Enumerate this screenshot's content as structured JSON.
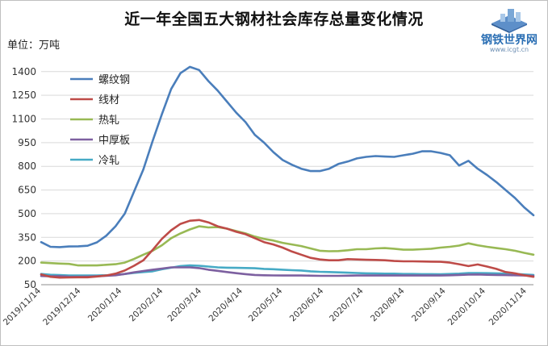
{
  "header": {
    "title": "近一年全国五大钢材社会库存总量变化情况",
    "unit_label": "单位：万吨",
    "logo_name": "钢铁世界网",
    "logo_url": "www.icgt.cn"
  },
  "colors": {
    "螺纹钢": "#4a7ebb",
    "线材": "#be4b48",
    "热轧": "#98b954",
    "中厚板": "#7d60a0",
    "冷轧": "#46aac5"
  },
  "chart_data": {
    "type": "line",
    "title": "近一年全国五大钢材社会库存总量变化情况",
    "ylabel": "单位：万吨",
    "xlabel": "",
    "ylim": [
      50,
      1450
    ],
    "yticks": [
      50,
      200,
      350,
      500,
      650,
      800,
      950,
      1100,
      1250,
      1400
    ],
    "grid": "horizontal",
    "legend": "top-left",
    "x": [
      "2019/11/14",
      "2019/11/21",
      "2019/11/28",
      "2019/12/5",
      "2019/12/12",
      "2019/12/19",
      "2019/12/26",
      "2020/1/2",
      "2020/1/9",
      "2020/1/16",
      "2020/1/23",
      "2020/1/30",
      "2020/2/6",
      "2020/2/13",
      "2020/2/20",
      "2020/2/27",
      "2020/3/5",
      "2020/3/12",
      "2020/3/19",
      "2020/3/26",
      "2020/4/2",
      "2020/4/9",
      "2020/4/16",
      "2020/4/23",
      "2020/4/30",
      "2020/5/7",
      "2020/5/14",
      "2020/5/21",
      "2020/5/28",
      "2020/6/4",
      "2020/6/11",
      "2020/6/18",
      "2020/6/25",
      "2020/7/2",
      "2020/7/9",
      "2020/7/16",
      "2020/7/23",
      "2020/7/30",
      "2020/8/6",
      "2020/8/13",
      "2020/8/20",
      "2020/8/27",
      "2020/9/3",
      "2020/9/10",
      "2020/9/17",
      "2020/9/24",
      "2020/10/1",
      "2020/10/8",
      "2020/10/15",
      "2020/10/22",
      "2020/10/29",
      "2020/11/5",
      "2020/11/12",
      "2020/11/19"
    ],
    "xticks": [
      "2019/11/14",
      "2019/12/14",
      "2020/1/14",
      "2020/2/14",
      "2020/3/14",
      "2020/4/14",
      "2020/5/14",
      "2020/6/14",
      "2020/7/14",
      "2020/8/14",
      "2020/9/14",
      "2020/10/14",
      "2020/11/14"
    ],
    "series": [
      {
        "name": "螺纹钢",
        "values": [
          320,
          290,
          288,
          292,
          293,
          297,
          318,
          360,
          420,
          500,
          640,
          780,
          960,
          1130,
          1290,
          1390,
          1430,
          1410,
          1340,
          1280,
          1210,
          1140,
          1080,
          1000,
          950,
          890,
          840,
          810,
          785,
          770,
          770,
          785,
          815,
          830,
          850,
          860,
          865,
          862,
          860,
          870,
          880,
          895,
          895,
          885,
          870,
          805,
          835,
          785,
          745,
          700,
          650,
          600,
          540,
          490
        ]
      },
      {
        "name": "线材",
        "values": [
          115,
          100,
          95,
          96,
          97,
          97,
          102,
          108,
          120,
          140,
          170,
          205,
          270,
          340,
          395,
          435,
          455,
          460,
          445,
          420,
          405,
          385,
          370,
          345,
          320,
          305,
          285,
          260,
          240,
          220,
          210,
          205,
          205,
          212,
          210,
          208,
          207,
          205,
          200,
          198,
          198,
          197,
          196,
          195,
          190,
          180,
          168,
          178,
          165,
          150,
          130,
          122,
          110,
          100
        ]
      },
      {
        "name": "热轧",
        "values": [
          190,
          187,
          184,
          182,
          172,
          172,
          172,
          176,
          180,
          190,
          213,
          240,
          265,
          300,
          345,
          375,
          400,
          420,
          413,
          415,
          405,
          390,
          375,
          355,
          340,
          330,
          315,
          305,
          295,
          280,
          265,
          262,
          263,
          268,
          275,
          275,
          280,
          282,
          278,
          272,
          272,
          275,
          278,
          285,
          290,
          298,
          312,
          300,
          290,
          282,
          275,
          265,
          252,
          240
        ]
      },
      {
        "name": "中厚板",
        "values": [
          105,
          103,
          104,
          101,
          100,
          101,
          103,
          106,
          110,
          118,
          128,
          137,
          145,
          152,
          160,
          160,
          160,
          155,
          145,
          138,
          130,
          123,
          117,
          112,
          110,
          109,
          108,
          108,
          108,
          107,
          106,
          106,
          106,
          107,
          108,
          108,
          108,
          108,
          108,
          108,
          108,
          108,
          108,
          108,
          110,
          112,
          114,
          115,
          113,
          112,
          111,
          110,
          108,
          106
        ]
      },
      {
        "name": "冷轧",
        "values": [
          118,
          113,
          111,
          109,
          108,
          108,
          109,
          110,
          112,
          118,
          125,
          130,
          135,
          148,
          158,
          168,
          172,
          170,
          165,
          160,
          158,
          157,
          156,
          154,
          150,
          148,
          145,
          142,
          140,
          135,
          132,
          130,
          128,
          126,
          124,
          122,
          121,
          120,
          120,
          118,
          118,
          117,
          117,
          116,
          118,
          120,
          124,
          124,
          123,
          122,
          120,
          118,
          115,
          112
        ]
      }
    ]
  }
}
